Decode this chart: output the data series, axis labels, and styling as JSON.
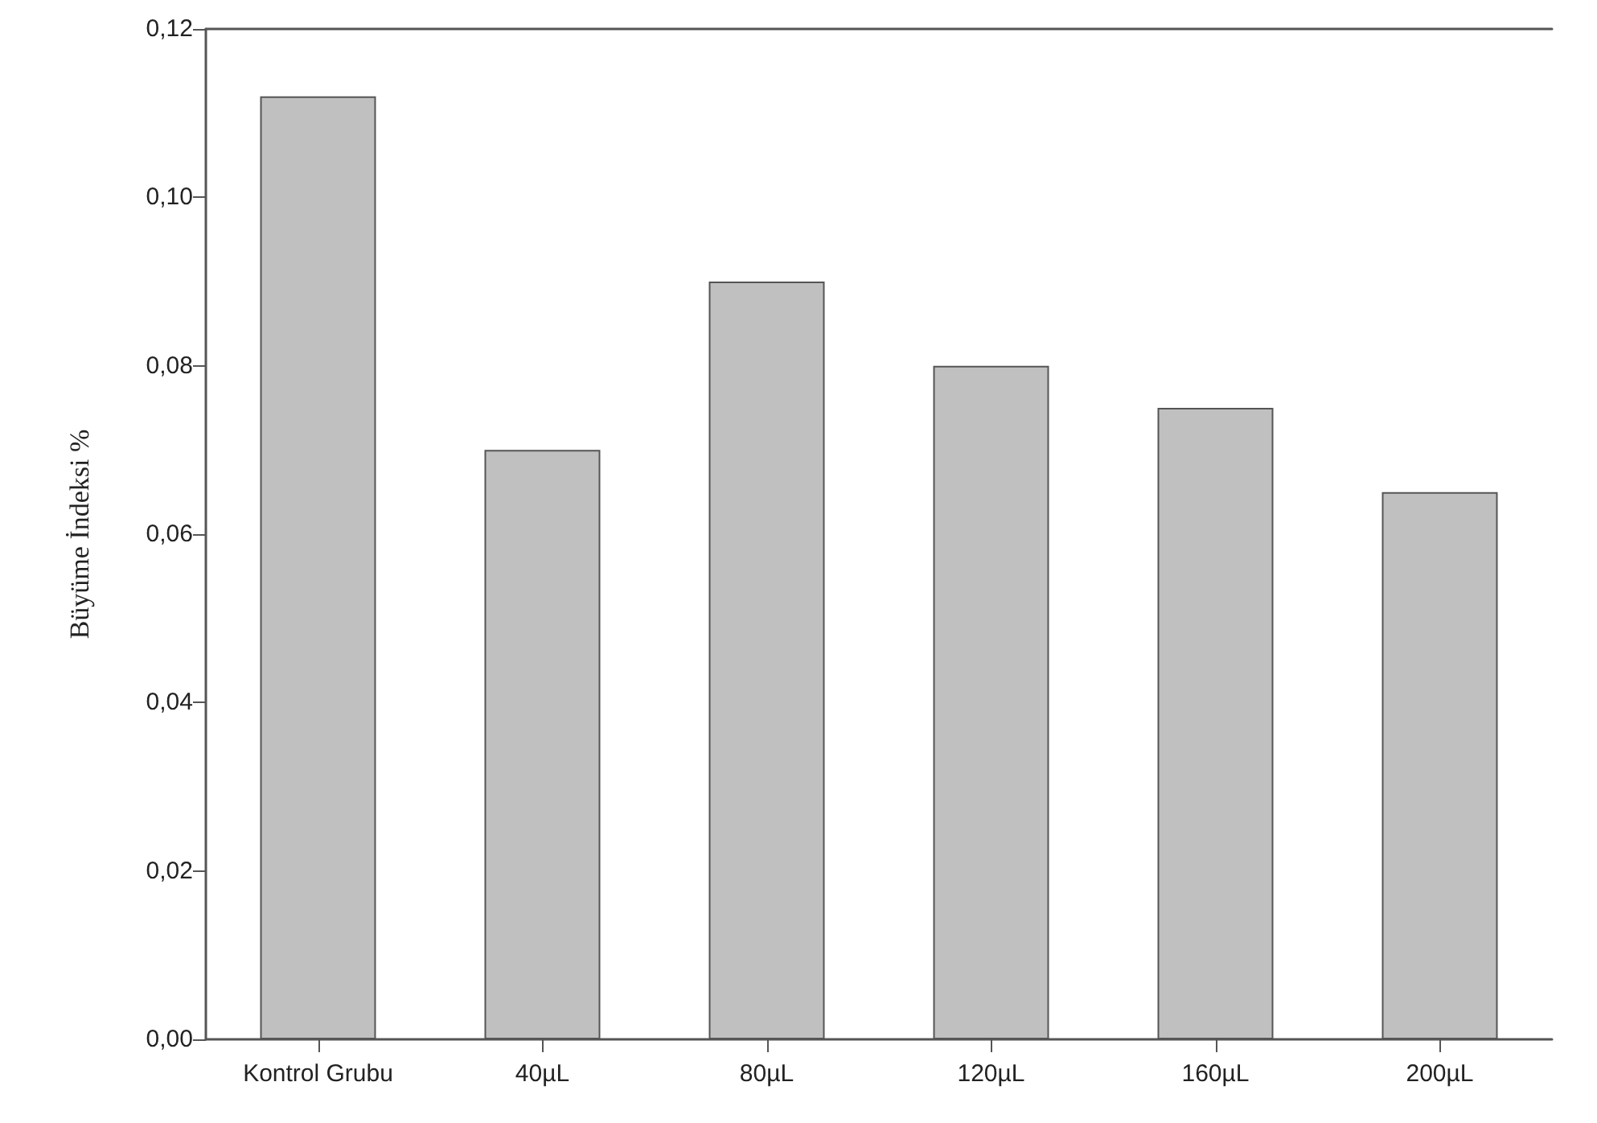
{
  "chart_data": {
    "type": "bar",
    "ylabel": "Büyüme İndeksi %",
    "categories": [
      "Kontrol Grubu",
      "40µL",
      "80µL",
      "120µL",
      "160µL",
      "200µL"
    ],
    "values": [
      0.112,
      0.07,
      0.09,
      0.08,
      0.075,
      0.065
    ],
    "color": "#c0c0c0",
    "ylim": [
      0,
      0.12
    ],
    "yticks": [
      {
        "value": 0,
        "label": "0,00"
      },
      {
        "value": 0.02,
        "label": "0,02"
      },
      {
        "value": 0.04,
        "label": "0,04"
      },
      {
        "value": 0.06,
        "label": "0,06"
      },
      {
        "value": 0.08,
        "label": "0,08"
      },
      {
        "value": 0.1,
        "label": "0,10"
      },
      {
        "value": 0.12,
        "label": "0,12"
      }
    ],
    "grid": false
  }
}
